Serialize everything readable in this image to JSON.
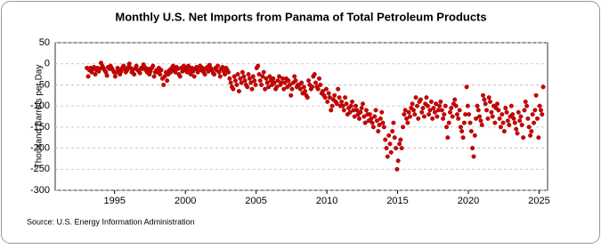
{
  "chart_data": {
    "type": "scatter",
    "title": "Monthly U.S. Net Imports from Panama of Total Petroleum Products",
    "y_label": "Thousand Barrels per Day",
    "source": "Source: U.S. Energy Information Administration",
    "xlim": [
      1990.8,
      2025.6
    ],
    "ylim": [
      -300,
      50
    ],
    "xticks": [
      1995,
      2000,
      2005,
      2010,
      2015,
      2020,
      2025
    ],
    "yticks": [
      50,
      0,
      -50,
      -100,
      -150,
      -200,
      -250,
      -300
    ],
    "grid": true,
    "series": [
      {
        "color": "#cc0000",
        "x": [
          1993.04,
          1993.13,
          1993.21,
          1993.29,
          1993.38,
          1993.46,
          1993.54,
          1993.63,
          1993.71,
          1993.79,
          1993.88,
          1993.96,
          1994.04,
          1994.13,
          1994.21,
          1994.29,
          1994.38,
          1994.46,
          1994.54,
          1994.63,
          1994.71,
          1994.79,
          1994.88,
          1994.96,
          1995.04,
          1995.13,
          1995.21,
          1995.29,
          1995.38,
          1995.46,
          1995.54,
          1995.63,
          1995.71,
          1995.79,
          1995.88,
          1995.96,
          1996.04,
          1996.13,
          1996.21,
          1996.29,
          1996.38,
          1996.46,
          1996.54,
          1996.63,
          1996.71,
          1996.79,
          1996.88,
          1996.96,
          1997.04,
          1997.13,
          1997.21,
          1997.29,
          1997.38,
          1997.46,
          1997.54,
          1997.63,
          1997.71,
          1997.79,
          1997.88,
          1997.96,
          1998.04,
          1998.13,
          1998.21,
          1998.29,
          1998.38,
          1998.46,
          1998.54,
          1998.63,
          1998.71,
          1998.79,
          1998.88,
          1998.96,
          1999.04,
          1999.13,
          1999.21,
          1999.29,
          1999.38,
          1999.46,
          1999.54,
          1999.63,
          1999.71,
          1999.79,
          1999.88,
          1999.96,
          2000.04,
          2000.13,
          2000.21,
          2000.29,
          2000.38,
          2000.46,
          2000.54,
          2000.63,
          2000.71,
          2000.79,
          2000.88,
          2000.96,
          2001.04,
          2001.13,
          2001.21,
          2001.29,
          2001.38,
          2001.46,
          2001.54,
          2001.63,
          2001.71,
          2001.79,
          2001.88,
          2001.96,
          2002.04,
          2002.13,
          2002.21,
          2002.29,
          2002.38,
          2002.46,
          2002.54,
          2002.63,
          2002.71,
          2002.79,
          2002.88,
          2002.96,
          2003.04,
          2003.13,
          2003.21,
          2003.29,
          2003.38,
          2003.46,
          2003.54,
          2003.63,
          2003.71,
          2003.79,
          2003.88,
          2003.96,
          2004.04,
          2004.13,
          2004.21,
          2004.29,
          2004.38,
          2004.46,
          2004.54,
          2004.63,
          2004.71,
          2004.79,
          2004.88,
          2004.96,
          2005.04,
          2005.13,
          2005.21,
          2005.29,
          2005.38,
          2005.46,
          2005.54,
          2005.63,
          2005.71,
          2005.79,
          2005.88,
          2005.96,
          2006.04,
          2006.13,
          2006.21,
          2006.29,
          2006.38,
          2006.46,
          2006.54,
          2006.63,
          2006.71,
          2006.79,
          2006.88,
          2006.96,
          2007.04,
          2007.13,
          2007.21,
          2007.29,
          2007.38,
          2007.46,
          2007.54,
          2007.63,
          2007.71,
          2007.79,
          2007.88,
          2007.96,
          2008.04,
          2008.13,
          2008.21,
          2008.29,
          2008.38,
          2008.46,
          2008.54,
          2008.63,
          2008.71,
          2008.79,
          2008.88,
          2008.96,
          2009.04,
          2009.13,
          2009.21,
          2009.29,
          2009.38,
          2009.46,
          2009.54,
          2009.63,
          2009.71,
          2009.79,
          2009.88,
          2009.96,
          2010.04,
          2010.13,
          2010.21,
          2010.29,
          2010.38,
          2010.46,
          2010.54,
          2010.63,
          2010.71,
          2010.79,
          2010.88,
          2010.96,
          2011.04,
          2011.13,
          2011.21,
          2011.29,
          2011.38,
          2011.46,
          2011.54,
          2011.63,
          2011.71,
          2011.79,
          2011.88,
          2011.96,
          2012.04,
          2012.13,
          2012.21,
          2012.29,
          2012.38,
          2012.46,
          2012.54,
          2012.63,
          2012.71,
          2012.79,
          2012.88,
          2012.96,
          2013.04,
          2013.13,
          2013.21,
          2013.29,
          2013.38,
          2013.46,
          2013.54,
          2013.63,
          2013.71,
          2013.79,
          2013.88,
          2013.96,
          2014.04,
          2014.13,
          2014.21,
          2014.29,
          2014.38,
          2014.46,
          2014.54,
          2014.63,
          2014.71,
          2014.79,
          2014.88,
          2014.96,
          2015.04,
          2015.13,
          2015.21,
          2015.29,
          2015.38,
          2015.46,
          2015.54,
          2015.63,
          2015.71,
          2015.79,
          2015.88,
          2015.96,
          2016.04,
          2016.13,
          2016.21,
          2016.29,
          2016.38,
          2016.46,
          2016.54,
          2016.63,
          2016.71,
          2016.79,
          2016.88,
          2016.96,
          2017.04,
          2017.13,
          2017.21,
          2017.29,
          2017.38,
          2017.46,
          2017.54,
          2017.63,
          2017.71,
          2017.79,
          2017.88,
          2017.96,
          2018.04,
          2018.13,
          2018.21,
          2018.29,
          2018.38,
          2018.46,
          2018.54,
          2018.63,
          2018.71,
          2018.79,
          2018.88,
          2018.96,
          2019.04,
          2019.13,
          2019.21,
          2019.29,
          2019.38,
          2019.46,
          2019.54,
          2019.63,
          2019.71,
          2019.79,
          2019.88,
          2019.96,
          2020.04,
          2020.13,
          2020.21,
          2020.29,
          2020.38,
          2020.46,
          2020.54,
          2020.63,
          2020.71,
          2020.79,
          2020.88,
          2020.96,
          2021.04,
          2021.13,
          2021.21,
          2021.29,
          2021.38,
          2021.46,
          2021.54,
          2021.63,
          2021.71,
          2021.79,
          2021.88,
          2021.96,
          2022.04,
          2022.13,
          2022.21,
          2022.29,
          2022.38,
          2022.46,
          2022.54,
          2022.63,
          2022.71,
          2022.79,
          2022.88,
          2022.96,
          2023.04,
          2023.13,
          2023.21,
          2023.29,
          2023.38,
          2023.46,
          2023.54,
          2023.63,
          2023.71,
          2023.79,
          2023.88,
          2023.96,
          2024.04,
          2024.13,
          2024.21,
          2024.29,
          2024.38,
          2024.46,
          2024.54,
          2024.63,
          2024.71,
          2024.79,
          2024.88,
          2024.96,
          2025.04,
          2025.13,
          2025.21,
          2025.29
        ],
        "values": [
          -10,
          -30,
          -15,
          -10,
          -20,
          -12,
          -8,
          -25,
          -15,
          -10,
          -18,
          -12,
          2,
          -5,
          -10,
          -15,
          -20,
          -28,
          -8,
          -12,
          -5,
          -10,
          -15,
          -20,
          -30,
          -20,
          -10,
          -15,
          -25,
          -18,
          -10,
          -5,
          -12,
          -20,
          -15,
          -8,
          0,
          -10,
          -20,
          -15,
          -25,
          -10,
          -5,
          -15,
          -18,
          -22,
          -10,
          -12,
          -2,
          -8,
          -15,
          -20,
          -12,
          -25,
          -18,
          -10,
          -5,
          -30,
          -20,
          -15,
          -20,
          -10,
          -25,
          -15,
          -35,
          -50,
          -30,
          -20,
          -40,
          -25,
          -15,
          -20,
          -10,
          -5,
          -15,
          -20,
          -8,
          -12,
          -25,
          -30,
          -10,
          -18,
          -5,
          -15,
          -10,
          -20,
          -5,
          -15,
          -25,
          -10,
          -18,
          -30,
          -12,
          -8,
          -20,
          -15,
          -5,
          -15,
          -10,
          -20,
          -25,
          -12,
          -8,
          -18,
          -3,
          -10,
          -15,
          -22,
          -25,
          -10,
          -15,
          -5,
          -20,
          -30,
          -12,
          -8,
          -18,
          -25,
          -10,
          -15,
          -20,
          -35,
          -45,
          -55,
          -60,
          -30,
          -40,
          -50,
          -25,
          -65,
          -35,
          -45,
          -20,
          -30,
          -40,
          -50,
          -55,
          -25,
          -35,
          -45,
          -60,
          -30,
          -40,
          -50,
          -10,
          -5,
          -25,
          -40,
          -50,
          -30,
          -20,
          -60,
          -35,
          -45,
          -55,
          -30,
          -40,
          -50,
          -35,
          -45,
          -60,
          -55,
          -40,
          -30,
          -50,
          -45,
          -35,
          -60,
          -45,
          -35,
          -55,
          -40,
          -50,
          -75,
          -60,
          -45,
          -30,
          -40,
          -55,
          -50,
          -50,
          -60,
          -45,
          -70,
          -55,
          -65,
          -75,
          -80,
          -40,
          -50,
          -60,
          -55,
          -30,
          -25,
          -45,
          -55,
          -60,
          -35,
          -50,
          -70,
          -65,
          -75,
          -80,
          -60,
          -90,
          -70,
          -80,
          -110,
          -100,
          -85,
          -75,
          -90,
          -95,
          -60,
          -80,
          -100,
          -90,
          -100,
          -110,
          -80,
          -95,
          -120,
          -105,
          -115,
          -100,
          -90,
          -110,
          -125,
          -100,
          -110,
          -120,
          -130,
          -115,
          -105,
          -95,
          -125,
          -140,
          -110,
          -120,
          -135,
          -120,
          -130,
          -140,
          -150,
          -125,
          -110,
          -135,
          -160,
          -145,
          -130,
          -115,
          -140,
          -150,
          -180,
          -200,
          -220,
          -170,
          -190,
          -210,
          -160,
          -140,
          -175,
          -200,
          -250,
          -230,
          -190,
          -180,
          -200,
          -150,
          -120,
          -110,
          -130,
          -140,
          -115,
          -125,
          -105,
          -95,
          -110,
          -120,
          -80,
          -100,
          -130,
          -90,
          -85,
          -115,
          -105,
          -125,
          -95,
          -80,
          -100,
          -120,
          -110,
          -90,
          -130,
          -105,
          -115,
          -95,
          -125,
          -110,
          -100,
          -90,
          -110,
          -130,
          -120,
          -100,
          -150,
          -175,
          -140,
          -115,
          -105,
          -125,
          -95,
          -85,
          -100,
          -120,
          -130,
          -110,
          -150,
          -160,
          -175,
          -140,
          -120,
          -55,
          -100,
          -120,
          -140,
          -160,
          -200,
          -220,
          -170,
          -130,
          -100,
          -110,
          -125,
          -135,
          -145,
          -75,
          -85,
          -95,
          -110,
          -130,
          -80,
          -90,
          -115,
          -125,
          -100,
          -140,
          -105,
          -95,
          -110,
          -130,
          -150,
          -120,
          -140,
          -160,
          -105,
          -115,
          -135,
          -145,
          -125,
          -100,
          -120,
          -130,
          -140,
          -155,
          -165,
          -115,
          -135,
          -125,
          -145,
          -175,
          -110,
          -90,
          -100,
          -130,
          -150,
          -170,
          -160,
          -120,
          -140,
          -110,
          -75,
          -130,
          -175,
          -100,
          -110,
          -120,
          -55
        ]
      }
    ]
  }
}
